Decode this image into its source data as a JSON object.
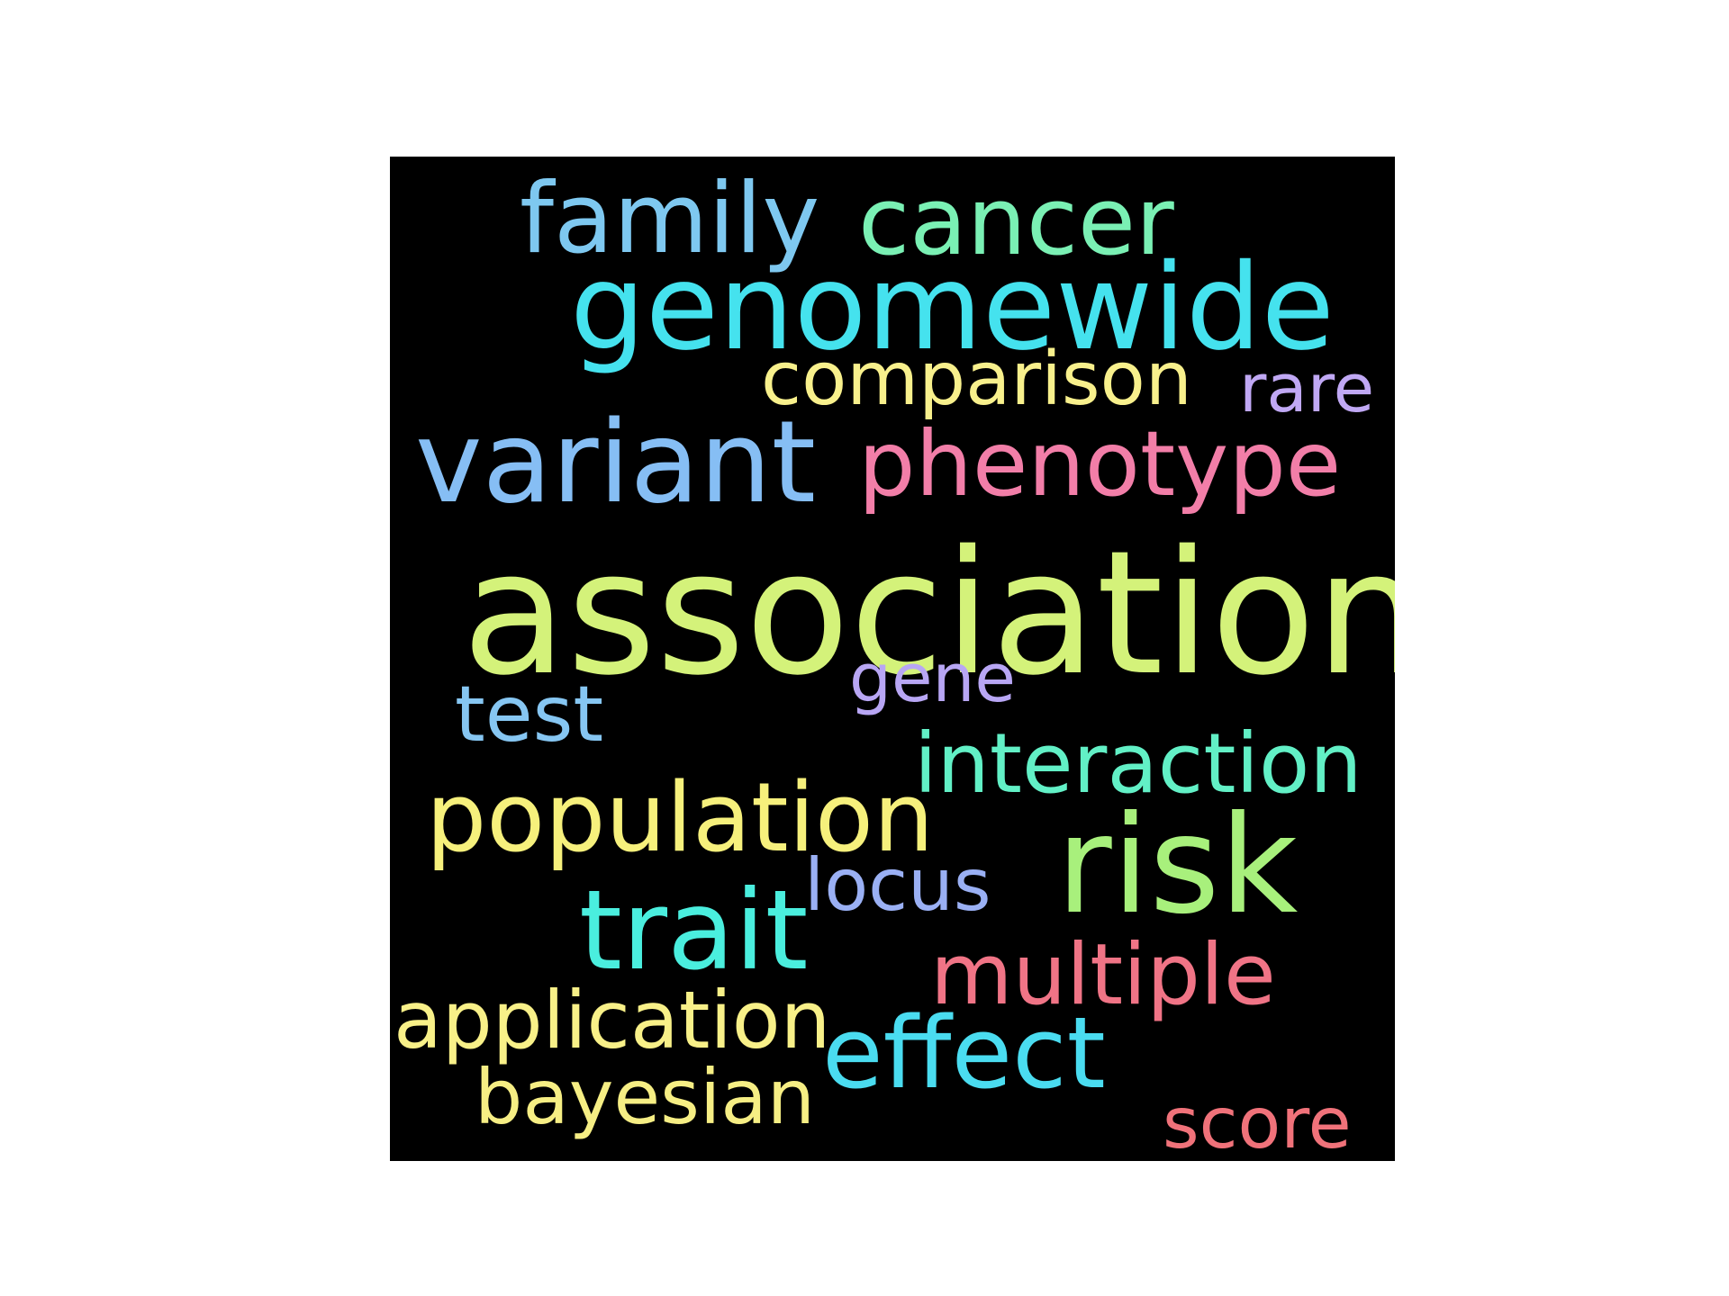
{
  "cloud": {
    "background": "#000000",
    "words": {
      "family": {
        "text": "family",
        "color": "#7ec8f0"
      },
      "cancer": {
        "text": "cancer",
        "color": "#7af0b4"
      },
      "genomewide": {
        "text": "genomewide",
        "color": "#45e2ee"
      },
      "comparison": {
        "text": "comparison",
        "color": "#f8f08c"
      },
      "rare": {
        "text": "rare",
        "color": "#c0a8f4"
      },
      "variant": {
        "text": "variant",
        "color": "#86bef4"
      },
      "phenotype": {
        "text": "phenotype",
        "color": "#f27ea8"
      },
      "association": {
        "text": "association",
        "color": "#d4f27a"
      },
      "gene": {
        "text": "gene",
        "color": "#b8a6f4"
      },
      "test": {
        "text": "test",
        "color": "#86c6f2"
      },
      "interaction": {
        "text": "interaction",
        "color": "#62f0c6"
      },
      "population": {
        "text": "population",
        "color": "#f6f07c"
      },
      "risk": {
        "text": "risk",
        "color": "#a8f07c"
      },
      "locus": {
        "text": "locus",
        "color": "#9ab0f4"
      },
      "trait": {
        "text": "trait",
        "color": "#4aeede"
      },
      "multiple": {
        "text": "multiple",
        "color": "#f07486"
      },
      "application": {
        "text": "application",
        "color": "#f8f088"
      },
      "effect": {
        "text": "effect",
        "color": "#4adcf0"
      },
      "bayesian": {
        "text": "bayesian",
        "color": "#f6ee84"
      },
      "score": {
        "text": "score",
        "color": "#f0727a"
      }
    }
  }
}
